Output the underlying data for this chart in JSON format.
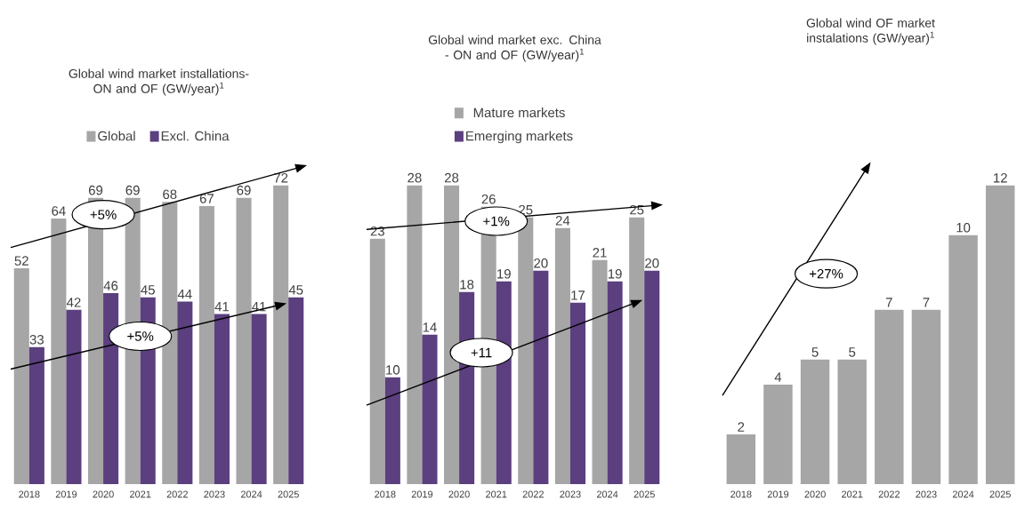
{
  "chart_data": [
    {
      "type": "bar",
      "title": "Global wind market installations- ON and OF (GW/year)$^{1}$",
      "categories": [
        "2018",
        "2019",
        "2020",
        "2021",
        "2022",
        "2023",
        "2024",
        "2025"
      ],
      "series": [
        {
          "name": "Global",
          "color": "#a6a6a6",
          "values": [
            52,
            64,
            69,
            69,
            68,
            67,
            69,
            72
          ]
        },
        {
          "name": "Excl. China",
          "color": "#5b3f7e",
          "values": [
            33,
            42,
            46,
            45,
            44,
            41,
            41,
            45
          ]
        }
      ],
      "data_labels": true,
      "legend": "top",
      "tick_labels": "x",
      "annotations": [
        "+5%",
        "+5%"
      ]
    },
    {
      "type": "bar",
      "title": "Global wind market exc. China - ON and OF (GW/year)$^{1}$",
      "categories": [
        "2018",
        "2019",
        "2020",
        "2021",
        "2022",
        "2023",
        "2024",
        "2025"
      ],
      "series": [
        {
          "name": "Mature markets",
          "color": "#a6a6a6",
          "values": [
            23,
            28,
            28,
            26,
            25,
            24,
            21,
            25
          ]
        },
        {
          "name": "Emerging markets",
          "color": "#5b3f7e",
          "values": [
            10,
            14,
            18,
            19,
            20,
            17,
            19,
            20
          ]
        }
      ],
      "data_labels": true,
      "legend": "top",
      "tick_labels": "x",
      "annotations": [
        "+1%",
        "+11"
      ]
    },
    {
      "type": "bar",
      "title": "Global wind OF market instalations (GW/year)$^{1}$",
      "categories": [
        "2018",
        "2019",
        "2020",
        "2021",
        "2022",
        "2023",
        "2024",
        "2025"
      ],
      "values": [
        2,
        4,
        5,
        5,
        7,
        7,
        10,
        12
      ],
      "color": "#a6a6a6",
      "data_labels": true,
      "tick_labels": "x",
      "annotations": [
        "+27%"
      ]
    }
  ]
}
